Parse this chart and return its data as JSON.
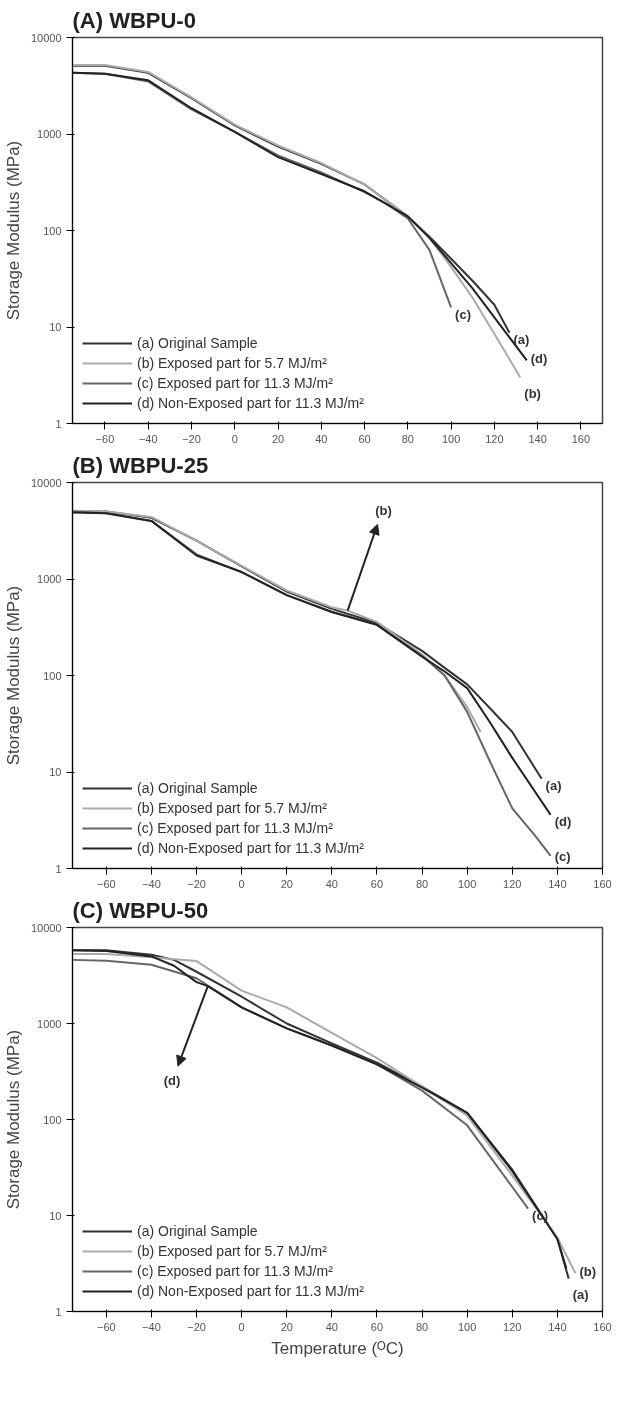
{
  "chart_data": [
    {
      "type": "line",
      "title": "(A) WBPU-0",
      "ylabel": "Storage Modulus (MPa)",
      "xlim": [
        -75,
        170
      ],
      "ylim": [
        1,
        10000
      ],
      "xticks": [
        -60,
        -40,
        -20,
        0,
        20,
        40,
        60,
        80,
        100,
        120,
        140,
        160
      ],
      "yticks": [
        1,
        10,
        100,
        1000,
        10000
      ],
      "log": true,
      "legend": "bottom left",
      "grid": false,
      "series": [
        {
          "name": "(a) Original Sample",
          "color": "#333333",
          "x": [
            -75,
            -60,
            -40,
            -20,
            0,
            20,
            40,
            60,
            80,
            90,
            100,
            110,
            120,
            127
          ],
          "values": [
            5100,
            5100,
            4300,
            2350,
            1230,
            740,
            490,
            300,
            140,
            86,
            51,
            30,
            17,
            8.7
          ]
        },
        {
          "name": "(b) Exposed part for 5.7 MJ/m²",
          "color": "#aaaaaa",
          "x": [
            -75,
            -60,
            -40,
            -20,
            0,
            20,
            40,
            60,
            80,
            90,
            100,
            110,
            120,
            132
          ],
          "values": [
            5200,
            5200,
            4400,
            2400,
            1250,
            760,
            500,
            300,
            140,
            84,
            42,
            20,
            8.5,
            3.0
          ]
        },
        {
          "name": "(c) Exposed part for 11.3 MJ/m²",
          "color": "#666666",
          "x": [
            -75,
            -60,
            -40,
            -20,
            0,
            20,
            40,
            60,
            70,
            80,
            90,
            100
          ],
          "values": [
            4300,
            4200,
            3500,
            1800,
            1050,
            600,
            400,
            250,
            190,
            133,
            63,
            16
          ]
        },
        {
          "name": "(d) Non-Exposed part for 11.3 MJ/m²",
          "color": "#222222",
          "x": [
            -75,
            -60,
            -40,
            -20,
            0,
            20,
            40,
            60,
            80,
            90,
            100,
            110,
            120,
            135
          ],
          "values": [
            4300,
            4200,
            3600,
            1850,
            1050,
            575,
            385,
            255,
            140,
            84,
            46,
            25,
            12.6,
            4.5
          ]
        }
      ],
      "annotations": [
        {
          "text": "(c)",
          "x": 100,
          "y": 16
        },
        {
          "text": "(a)",
          "x": 127,
          "y": 8.7
        },
        {
          "text": "(d)",
          "x": 135,
          "y": 4.5
        },
        {
          "text": "(b)",
          "x": 132,
          "y": 3.0
        }
      ]
    },
    {
      "type": "line",
      "title": "(B) WBPU-25",
      "ylabel": "Storage Modulus (MPa)",
      "xlim": [
        -75,
        160
      ],
      "ylim": [
        1,
        10000
      ],
      "xticks": [
        -60,
        -40,
        -20,
        0,
        20,
        40,
        60,
        80,
        100,
        120,
        140,
        160
      ],
      "yticks": [
        1,
        10,
        100,
        1000,
        10000
      ],
      "log": true,
      "legend": "bottom left",
      "grid": false,
      "series": [
        {
          "name": "(a) Original Sample",
          "color": "#333333",
          "x": [
            -75,
            -60,
            -40,
            -20,
            0,
            20,
            40,
            60,
            80,
            90,
            100,
            110,
            120,
            133
          ],
          "values": [
            5000,
            5000,
            4300,
            2500,
            1350,
            740,
            490,
            350,
            180,
            120,
            81,
            46,
            26,
            8.5
          ]
        },
        {
          "name": "(b) Exposed part for 5.7 MJ/m²",
          "color": "#aaaaaa",
          "x": [
            -75,
            -60,
            -40,
            -20,
            0,
            20,
            40,
            47,
            60,
            80,
            90,
            100,
            106
          ],
          "values": [
            5100,
            5000,
            4400,
            2500,
            1370,
            760,
            510,
            470,
            360,
            165,
            100,
            47,
            26
          ]
        },
        {
          "name": "(c) Exposed part for 11.3 MJ/m²",
          "color": "#666666",
          "x": [
            -75,
            -60,
            -40,
            -20,
            0,
            20,
            40,
            60,
            80,
            90,
            100,
            110,
            120,
            130,
            137
          ],
          "values": [
            5000,
            4800,
            4000,
            1800,
            1180,
            680,
            455,
            335,
            160,
            100,
            42,
            13,
            4.2,
            2.2,
            1.35
          ]
        },
        {
          "name": "(d) Non-Exposed part for 11.3 MJ/m²",
          "color": "#222222",
          "x": [
            -75,
            -60,
            -40,
            -20,
            0,
            20,
            40,
            60,
            80,
            90,
            100,
            110,
            120,
            137
          ],
          "values": [
            4900,
            4800,
            4000,
            1750,
            1180,
            680,
            455,
            335,
            157,
            110,
            74,
            33,
            14,
            3.6
          ]
        }
      ],
      "annotations": [
        {
          "text": "(b)",
          "x": 47,
          "y": 470
        },
        {
          "text": "(a)",
          "x": 133,
          "y": 8.5
        },
        {
          "text": "(d)",
          "x": 137,
          "y": 3.6
        },
        {
          "text": "(c)",
          "x": 137,
          "y": 1.35
        }
      ]
    },
    {
      "type": "line",
      "title": "(C) WBPU-50",
      "xlabel": "Temperature (ᴼC)",
      "ylabel": "Storage Modulus (MPa)",
      "xlim": [
        -75,
        160
      ],
      "ylim": [
        1,
        10000
      ],
      "xticks": [
        -60,
        -40,
        -20,
        0,
        20,
        40,
        60,
        80,
        100,
        120,
        140,
        160
      ],
      "yticks": [
        1,
        10,
        100,
        1000,
        10000
      ],
      "log": true,
      "legend": "bottom left",
      "grid": false,
      "series": [
        {
          "name": "(a) Original Sample",
          "color": "#333333",
          "x": [
            -75,
            -60,
            -40,
            -30,
            -20,
            0,
            20,
            40,
            60,
            80,
            100,
            120,
            140,
            145
          ],
          "values": [
            5800,
            5800,
            5200,
            4600,
            3460,
            1900,
            1000,
            620,
            390,
            220,
            117,
            30,
            5.7,
            2.2
          ]
        },
        {
          "name": "(b) Exposed part for 5.7 MJ/m²",
          "color": "#aaaaaa",
          "x": [
            -75,
            -60,
            -40,
            -20,
            0,
            20,
            40,
            60,
            80,
            100,
            120,
            140,
            148
          ],
          "values": [
            5300,
            5300,
            4900,
            4470,
            2200,
            1470,
            800,
            435,
            220,
            110,
            26,
            5.9,
            2.5
          ]
        },
        {
          "name": "(c) Exposed part for 11.3 MJ/m²",
          "color": "#666666",
          "x": [
            -75,
            -60,
            -40,
            -20,
            0,
            20,
            40,
            60,
            80,
            100,
            127
          ],
          "values": [
            4600,
            4500,
            4100,
            2960,
            1470,
            890,
            590,
            375,
            200,
            87,
            11.8
          ]
        },
        {
          "name": "(d) Non-Exposed part for 11.3 MJ/m²",
          "color": "#222222",
          "x": [
            -75,
            -60,
            -40,
            -30,
            -20,
            -15,
            0,
            20,
            40,
            60,
            80,
            100,
            120,
            140,
            144
          ],
          "values": [
            5800,
            5700,
            5000,
            4000,
            2700,
            2450,
            1470,
            890,
            590,
            375,
            215,
            117,
            29,
            5.7,
            2.8
          ]
        }
      ],
      "annotations": [
        {
          "text": "(d)",
          "x": -15,
          "y": 2450
        },
        {
          "text": "(c)",
          "x": 127,
          "y": 11.8
        },
        {
          "text": "(b)",
          "x": 148,
          "y": 2.5
        },
        {
          "text": "(a)",
          "x": 145,
          "y": 2.2
        }
      ]
    }
  ]
}
